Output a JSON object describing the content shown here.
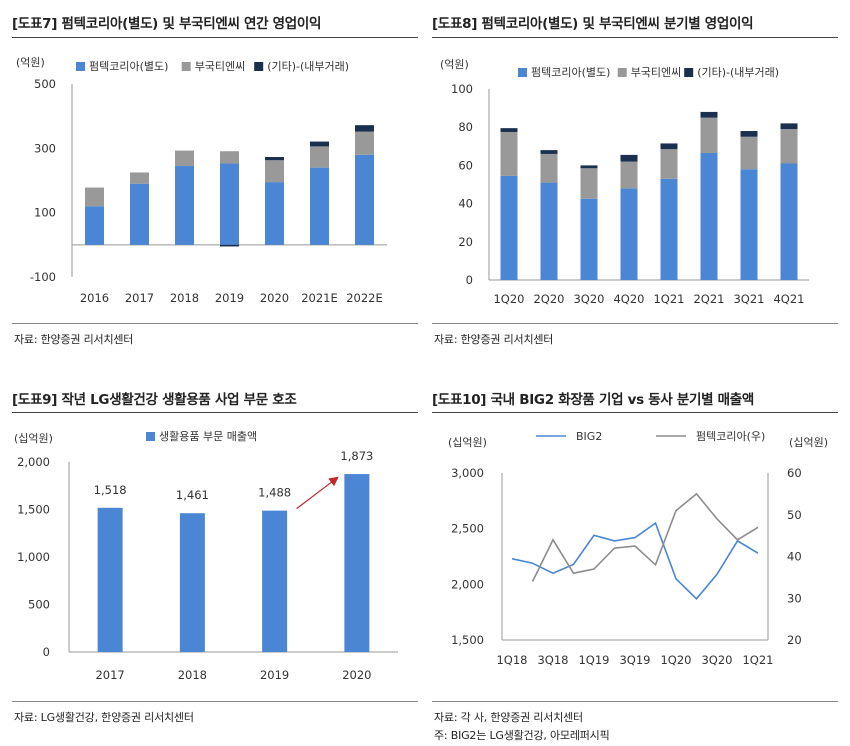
{
  "colors": {
    "blue": "#4a86d4",
    "gray": "#999999",
    "navy": "#1b2f4e",
    "line_gray": "#8c8c8c",
    "arrow": "#c0282d"
  },
  "panels": [
    {
      "title": "[도표7] 펌텍코리아(별도) 및 부국티엔씨 연간 영업이익",
      "source": "자료: 한양증권 리서치센터",
      "note": ""
    },
    {
      "title": "[도표8] 펌텍코리아(별도) 및 부국티엔씨 분기별 영업이익",
      "source": "자료: 한양증권 리서치센터",
      "note": ""
    },
    {
      "title": "[도표9] 작년 LG생활건강 생활용품 사업 부문 호조",
      "source": "자료: LG생활건강, 한양증권 리서치센터",
      "note": ""
    },
    {
      "title": "[도표10] 국내 BIG2 화장품 기업 vs 동사 분기별 매출액",
      "source": "자료: 각 사, 한양증권 리서치센터",
      "note": "주: BIG2는 LG생활건강, 아모레퍼시픽"
    }
  ],
  "chart_data": [
    {
      "type": "bar",
      "stacked": true,
      "ylabel": "(억원)",
      "ylim": [
        -100,
        500
      ],
      "yticks": [
        -100,
        100,
        300,
        500
      ],
      "ytick_labels": [
        "-100",
        "100",
        "300",
        "500"
      ],
      "categories": [
        "2016",
        "2017",
        "2018",
        "2019",
        "2020",
        "2021E",
        "2022E"
      ],
      "series": [
        {
          "name": "펌텍코리아(별도)",
          "values": [
            120,
            190,
            245,
            253,
            195,
            240,
            280
          ]
        },
        {
          "name": "부국티엔씨",
          "values": [
            58,
            35,
            48,
            38,
            68,
            66,
            72
          ]
        },
        {
          "name": "(기타)-(내부거래)",
          "values": [
            0,
            0,
            0,
            -5,
            10,
            15,
            20
          ]
        }
      ],
      "legend": "top"
    },
    {
      "type": "bar",
      "stacked": true,
      "ylabel": "(억원)",
      "ylim": [
        0,
        100
      ],
      "yticks": [
        0,
        20,
        40,
        60,
        80,
        100
      ],
      "ytick_labels": [
        "0",
        "20",
        "40",
        "60",
        "80",
        "100"
      ],
      "categories": [
        "1Q20",
        "2Q20",
        "3Q20",
        "4Q20",
        "1Q21",
        "2Q21",
        "3Q21",
        "4Q21"
      ],
      "series": [
        {
          "name": "펌텍코리아(별도)",
          "values": [
            54.5,
            51,
            42.5,
            48,
            53,
            66.5,
            58,
            61
          ]
        },
        {
          "name": "부국티엔씨",
          "values": [
            23,
            15,
            16,
            14,
            15.5,
            18.5,
            17,
            18
          ]
        },
        {
          "name": "(기타)-(내부거래)",
          "values": [
            2,
            2,
            1.5,
            3.5,
            3,
            3,
            3,
            3
          ]
        }
      ],
      "legend": "top"
    },
    {
      "type": "bar",
      "ylabel": "(십억원)",
      "ylim": [
        0,
        2000
      ],
      "yticks": [
        0,
        500,
        1000,
        1500,
        2000
      ],
      "ytick_labels": [
        "0",
        "500",
        "1,000",
        "1,500",
        "2,000"
      ],
      "categories": [
        "2017",
        "2018",
        "2019",
        "2020"
      ],
      "series": [
        {
          "name": "생활용품 부문 매출액",
          "values": [
            1518,
            1461,
            1488,
            1873
          ],
          "labels": [
            "1,518",
            "1,461",
            "1,488",
            "1,873"
          ]
        }
      ],
      "legend": "top"
    },
    {
      "type": "line",
      "ylabel": "(십억원)",
      "ylabel_right": "(십억원)",
      "ylim": [
        1500,
        3000
      ],
      "ylim_right": [
        20,
        60
      ],
      "yticks": [
        1500,
        2000,
        2500,
        3000
      ],
      "ytick_labels": [
        "1,500",
        "2,000",
        "2,500",
        "3,000"
      ],
      "yticks_right": [
        20,
        30,
        40,
        50,
        60
      ],
      "ytick_labels_right": [
        "20",
        "30",
        "40",
        "50",
        "60"
      ],
      "x": [
        "1Q18",
        "2Q18",
        "3Q18",
        "4Q18",
        "1Q19",
        "2Q19",
        "3Q19",
        "4Q19",
        "1Q20",
        "2Q20",
        "3Q20",
        "4Q20",
        "1Q21"
      ],
      "xtick_labels": [
        "1Q18",
        "3Q18",
        "1Q19",
        "3Q19",
        "1Q20",
        "3Q20",
        "1Q21"
      ],
      "series": [
        {
          "name": "BIG2",
          "axis": "left",
          "values": [
            2230,
            2190,
            2100,
            2180,
            2440,
            2390,
            2420,
            2550,
            2050,
            1870,
            2090,
            2390,
            2280
          ]
        },
        {
          "name": "펌텍코리아(우)",
          "axis": "right",
          "values": [
            null,
            34,
            44,
            36,
            37,
            42,
            42.5,
            38,
            51,
            55,
            49,
            44,
            47
          ]
        }
      ],
      "legend": "top"
    }
  ]
}
